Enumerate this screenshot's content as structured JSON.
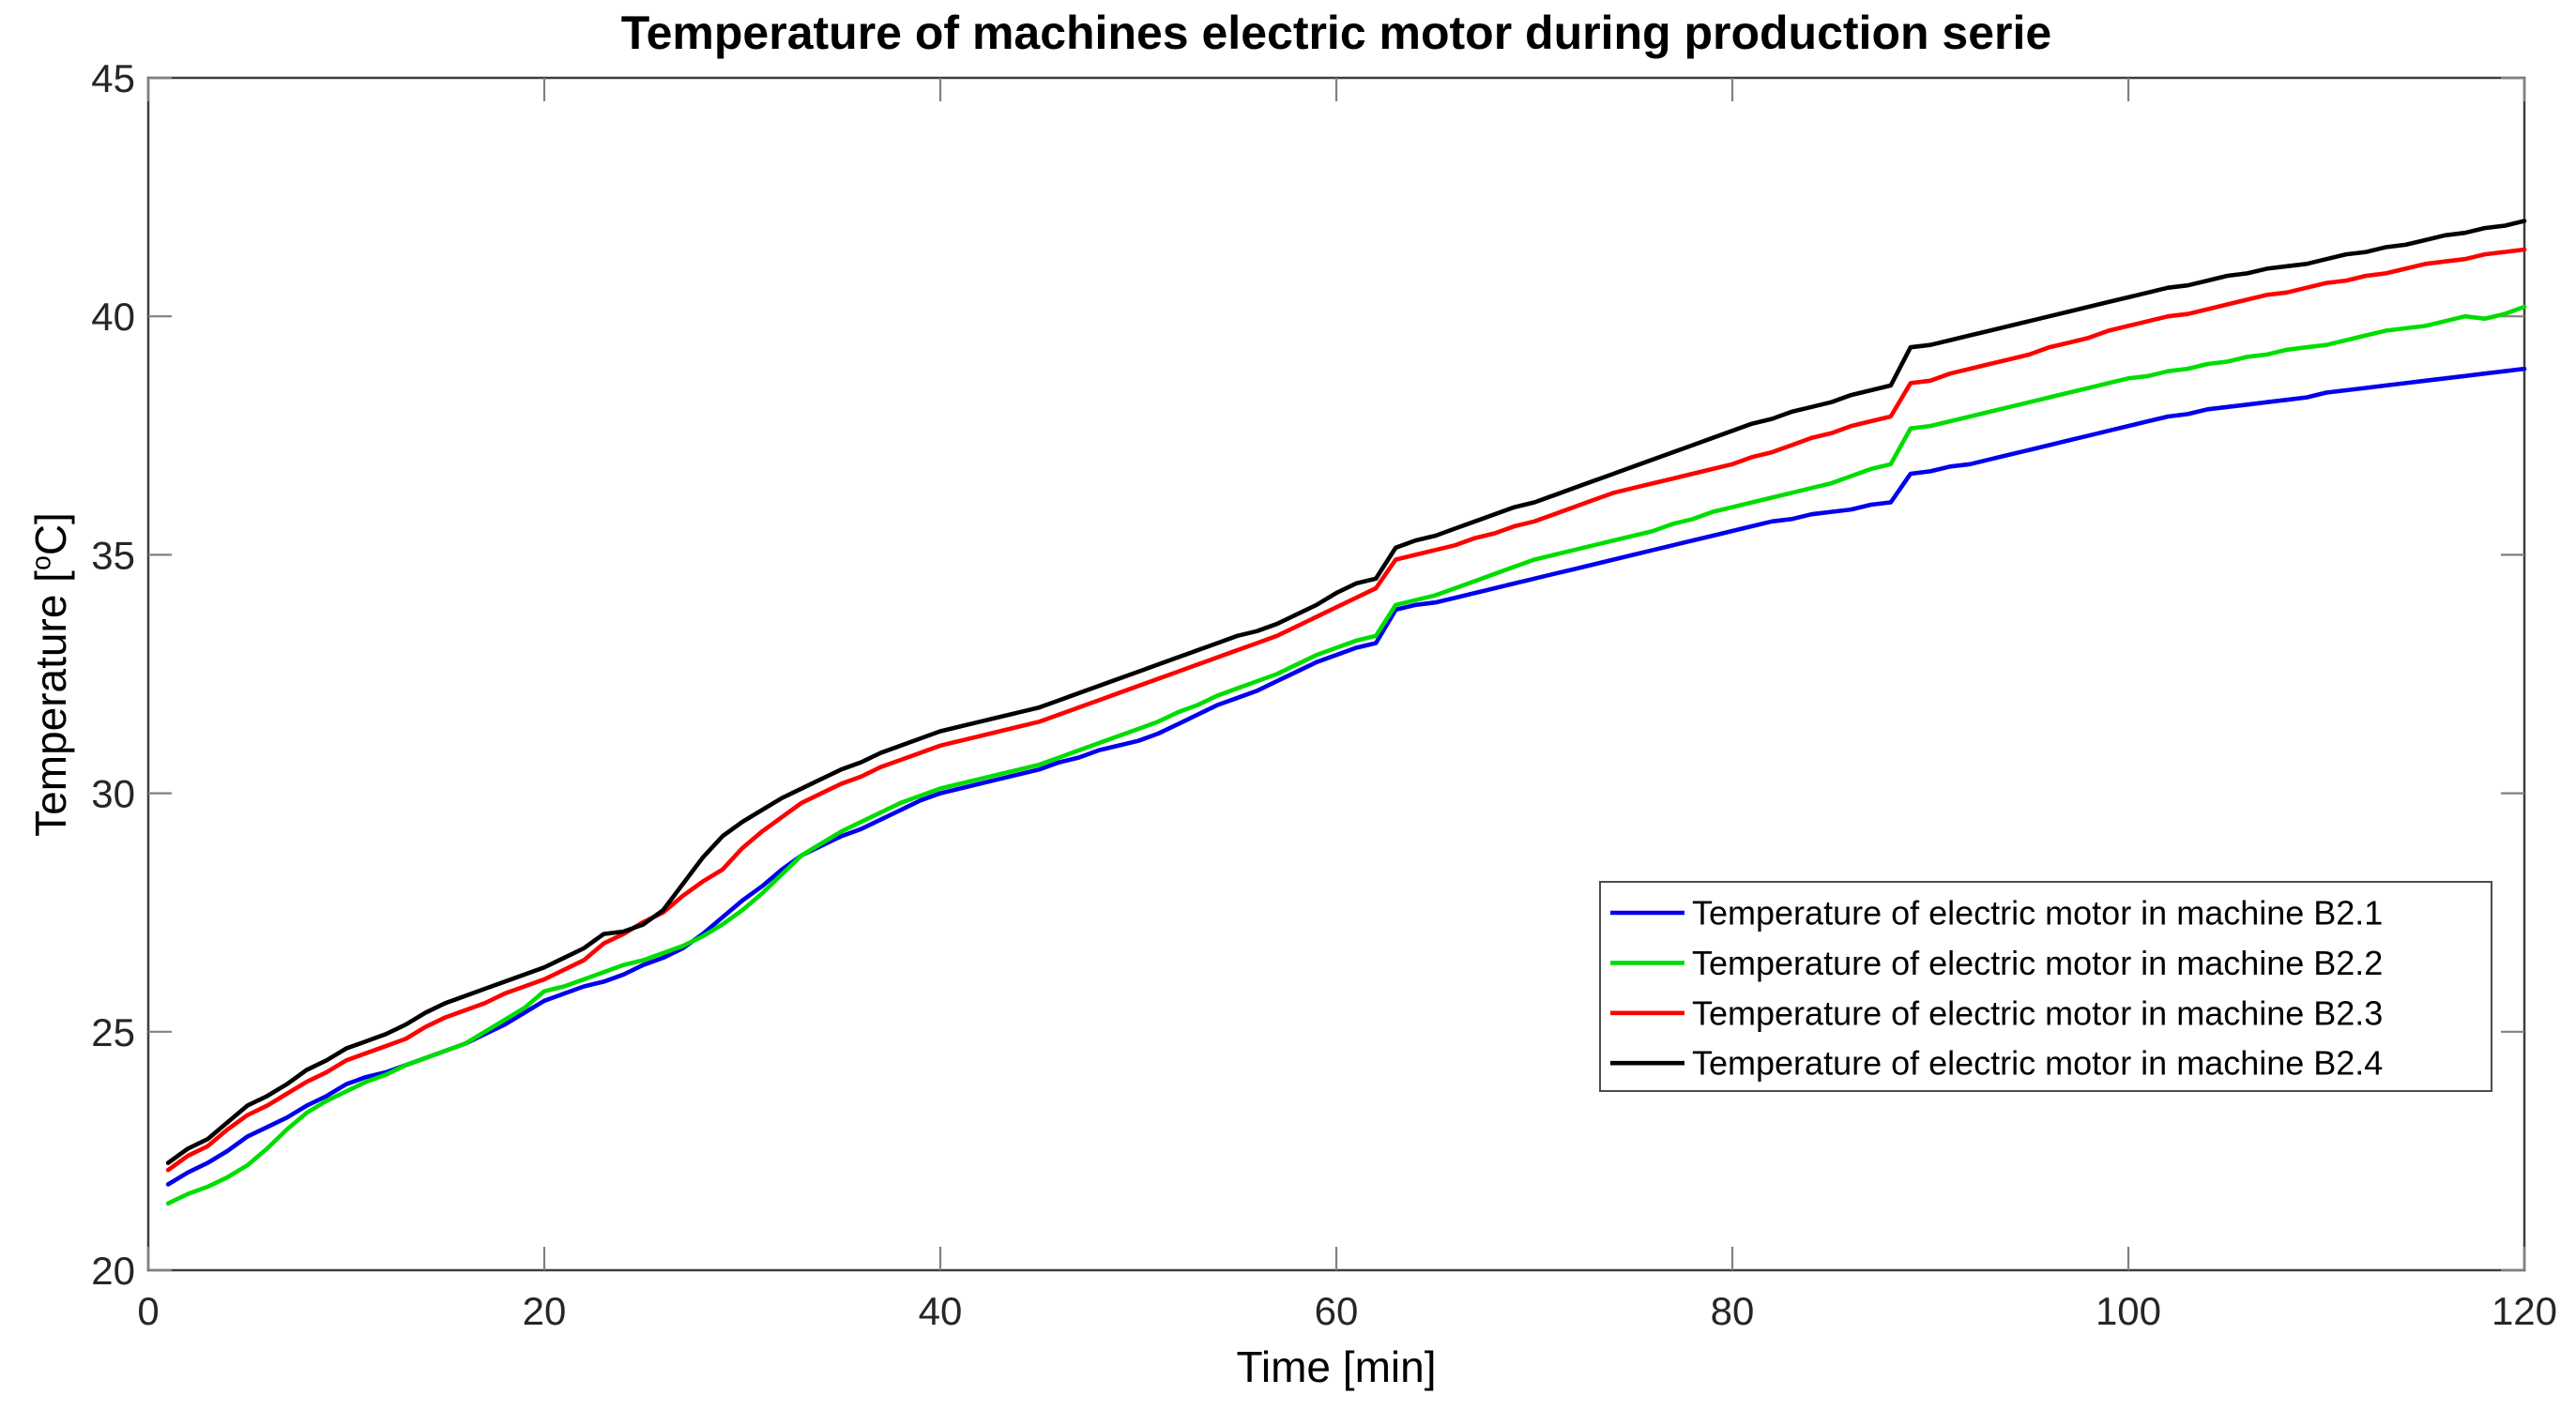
{
  "chart_data": {
    "type": "line",
    "title": "Temperature of machines electric motor during production serie",
    "xlabel": "Time [min]",
    "ylabel": "Temperature [oC]",
    "ylabel_parts": {
      "pre": "Temperature [",
      "sup": "o",
      "post": "C]"
    },
    "xlim": [
      0,
      120
    ],
    "ylim": [
      20,
      45
    ],
    "xticks": [
      0,
      20,
      40,
      60,
      80,
      100,
      120
    ],
    "yticks": [
      20,
      25,
      30,
      35,
      40,
      45
    ],
    "grid": false,
    "legend_position": "inside lower right",
    "x": [
      1,
      2,
      3,
      4,
      5,
      6,
      7,
      8,
      9,
      10,
      11,
      12,
      13,
      14,
      15,
      16,
      17,
      18,
      19,
      20,
      21,
      22,
      23,
      24,
      25,
      26,
      27,
      28,
      29,
      30,
      31,
      32,
      33,
      34,
      35,
      36,
      37,
      38,
      39,
      40,
      41,
      42,
      43,
      44,
      45,
      46,
      47,
      48,
      49,
      50,
      51,
      52,
      53,
      54,
      55,
      56,
      57,
      58,
      59,
      60,
      61,
      62,
      63,
      64,
      65,
      66,
      67,
      68,
      69,
      70,
      71,
      72,
      73,
      74,
      75,
      76,
      77,
      78,
      79,
      80,
      81,
      82,
      83,
      84,
      85,
      86,
      87,
      88,
      89,
      90,
      91,
      92,
      93,
      94,
      95,
      96,
      97,
      98,
      99,
      100,
      101,
      102,
      103,
      104,
      105,
      106,
      107,
      108,
      109,
      110,
      111,
      112,
      113,
      114,
      115,
      116,
      117,
      118,
      119,
      120
    ],
    "series": [
      {
        "name": "Temperature of electric motor in machine B2.1",
        "color": "#0000ee",
        "values": [
          21.8,
          22.05,
          22.25,
          22.5,
          22.8,
          23.0,
          23.2,
          23.45,
          23.65,
          23.9,
          24.05,
          24.15,
          24.3,
          24.45,
          24.6,
          24.75,
          24.95,
          25.15,
          25.4,
          25.65,
          25.8,
          25.95,
          26.05,
          26.2,
          26.4,
          26.55,
          26.75,
          27.05,
          27.4,
          27.75,
          28.05,
          28.4,
          28.7,
          28.9,
          29.1,
          29.25,
          29.45,
          29.65,
          29.85,
          30.0,
          30.1,
          30.2,
          30.3,
          30.4,
          30.5,
          30.65,
          30.75,
          30.9,
          31.0,
          31.1,
          31.25,
          31.45,
          31.65,
          31.85,
          32.0,
          32.15,
          32.35,
          32.55,
          32.75,
          32.9,
          33.05,
          33.15,
          33.85,
          33.95,
          34.0,
          34.1,
          34.2,
          34.3,
          34.4,
          34.5,
          34.6,
          34.7,
          34.8,
          34.9,
          35.0,
          35.1,
          35.2,
          35.3,
          35.4,
          35.5,
          35.6,
          35.7,
          35.75,
          35.85,
          35.9,
          35.95,
          36.05,
          36.1,
          36.7,
          36.75,
          36.85,
          36.9,
          37.0,
          37.1,
          37.2,
          37.3,
          37.4,
          37.5,
          37.6,
          37.7,
          37.8,
          37.9,
          37.95,
          38.05,
          38.1,
          38.15,
          38.2,
          38.25,
          38.3,
          38.4,
          38.45,
          38.5,
          38.55,
          38.6,
          38.65,
          38.7,
          38.75,
          38.8,
          38.85,
          38.9
        ]
      },
      {
        "name": "Temperature of electric motor in machine B2.2",
        "color": "#00dd00",
        "values": [
          21.4,
          21.6,
          21.75,
          21.95,
          22.2,
          22.55,
          22.95,
          23.3,
          23.55,
          23.75,
          23.95,
          24.1,
          24.3,
          24.45,
          24.6,
          24.75,
          25.0,
          25.25,
          25.5,
          25.85,
          25.95,
          26.1,
          26.25,
          26.4,
          26.5,
          26.65,
          26.8,
          27.0,
          27.25,
          27.55,
          27.9,
          28.3,
          28.7,
          28.95,
          29.2,
          29.4,
          29.6,
          29.8,
          29.95,
          30.1,
          30.2,
          30.3,
          30.4,
          30.5,
          30.6,
          30.75,
          30.9,
          31.05,
          31.2,
          31.35,
          31.5,
          31.7,
          31.85,
          32.05,
          32.2,
          32.35,
          32.5,
          32.7,
          32.9,
          33.05,
          33.2,
          33.3,
          33.95,
          34.05,
          34.15,
          34.3,
          34.45,
          34.6,
          34.75,
          34.9,
          35.0,
          35.1,
          35.2,
          35.3,
          35.4,
          35.5,
          35.65,
          35.75,
          35.9,
          36.0,
          36.1,
          36.2,
          36.3,
          36.4,
          36.5,
          36.65,
          36.8,
          36.9,
          37.65,
          37.7,
          37.8,
          37.9,
          38.0,
          38.1,
          38.2,
          38.3,
          38.4,
          38.5,
          38.6,
          38.7,
          38.75,
          38.85,
          38.9,
          39.0,
          39.05,
          39.15,
          39.2,
          39.3,
          39.35,
          39.4,
          39.5,
          39.6,
          39.7,
          39.75,
          39.8,
          39.9,
          40.0,
          39.95,
          40.05,
          40.2
        ]
      },
      {
        "name": "Temperature of electric motor in machine B2.3",
        "color": "#ff0000",
        "values": [
          22.1,
          22.4,
          22.6,
          22.95,
          23.25,
          23.45,
          23.7,
          23.95,
          24.15,
          24.4,
          24.55,
          24.7,
          24.85,
          25.1,
          25.3,
          25.45,
          25.6,
          25.8,
          25.95,
          26.1,
          26.3,
          26.5,
          26.85,
          27.05,
          27.3,
          27.5,
          27.85,
          28.15,
          28.4,
          28.85,
          29.2,
          29.5,
          29.8,
          30.0,
          30.2,
          30.35,
          30.55,
          30.7,
          30.85,
          31.0,
          31.1,
          31.2,
          31.3,
          31.4,
          31.5,
          31.65,
          31.8,
          31.95,
          32.1,
          32.25,
          32.4,
          32.55,
          32.7,
          32.85,
          33.0,
          33.15,
          33.3,
          33.5,
          33.7,
          33.9,
          34.1,
          34.3,
          34.9,
          35.0,
          35.1,
          35.2,
          35.35,
          35.45,
          35.6,
          35.7,
          35.85,
          36.0,
          36.15,
          36.3,
          36.4,
          36.5,
          36.6,
          36.7,
          36.8,
          36.9,
          37.05,
          37.15,
          37.3,
          37.45,
          37.55,
          37.7,
          37.8,
          37.9,
          38.6,
          38.65,
          38.8,
          38.9,
          39.0,
          39.1,
          39.2,
          39.35,
          39.45,
          39.55,
          39.7,
          39.8,
          39.9,
          40.0,
          40.05,
          40.15,
          40.25,
          40.35,
          40.45,
          40.5,
          40.6,
          40.7,
          40.75,
          40.85,
          40.9,
          41.0,
          41.1,
          41.15,
          41.2,
          41.3,
          41.35,
          41.4
        ]
      },
      {
        "name": "Temperature of electric motor in machine B2.4",
        "color": "#000000",
        "values": [
          22.25,
          22.55,
          22.75,
          23.1,
          23.45,
          23.65,
          23.9,
          24.2,
          24.4,
          24.65,
          24.8,
          24.95,
          25.15,
          25.4,
          25.6,
          25.75,
          25.9,
          26.05,
          26.2,
          26.35,
          26.55,
          26.75,
          27.05,
          27.1,
          27.25,
          27.55,
          28.1,
          28.65,
          29.1,
          29.4,
          29.65,
          29.9,
          30.1,
          30.3,
          30.5,
          30.65,
          30.85,
          31.0,
          31.15,
          31.3,
          31.4,
          31.5,
          31.6,
          31.7,
          31.8,
          31.95,
          32.1,
          32.25,
          32.4,
          32.55,
          32.7,
          32.85,
          33.0,
          33.15,
          33.3,
          33.4,
          33.55,
          33.75,
          33.95,
          34.2,
          34.4,
          34.5,
          35.15,
          35.3,
          35.4,
          35.55,
          35.7,
          35.85,
          36.0,
          36.1,
          36.25,
          36.4,
          36.55,
          36.7,
          36.85,
          37.0,
          37.15,
          37.3,
          37.45,
          37.6,
          37.75,
          37.85,
          38.0,
          38.1,
          38.2,
          38.35,
          38.45,
          38.55,
          39.35,
          39.4,
          39.5,
          39.6,
          39.7,
          39.8,
          39.9,
          40.0,
          40.1,
          40.2,
          40.3,
          40.4,
          40.5,
          40.6,
          40.65,
          40.75,
          40.85,
          40.9,
          41.0,
          41.05,
          41.1,
          41.2,
          41.3,
          41.35,
          41.45,
          41.5,
          41.6,
          41.7,
          41.75,
          41.85,
          41.9,
          42.0
        ]
      }
    ],
    "colors": {
      "axis_box": "#3d3d3d",
      "tick": "#808080",
      "tick_text": "#262626",
      "legend_border": "#4d4d4d",
      "background": "#ffffff"
    }
  }
}
